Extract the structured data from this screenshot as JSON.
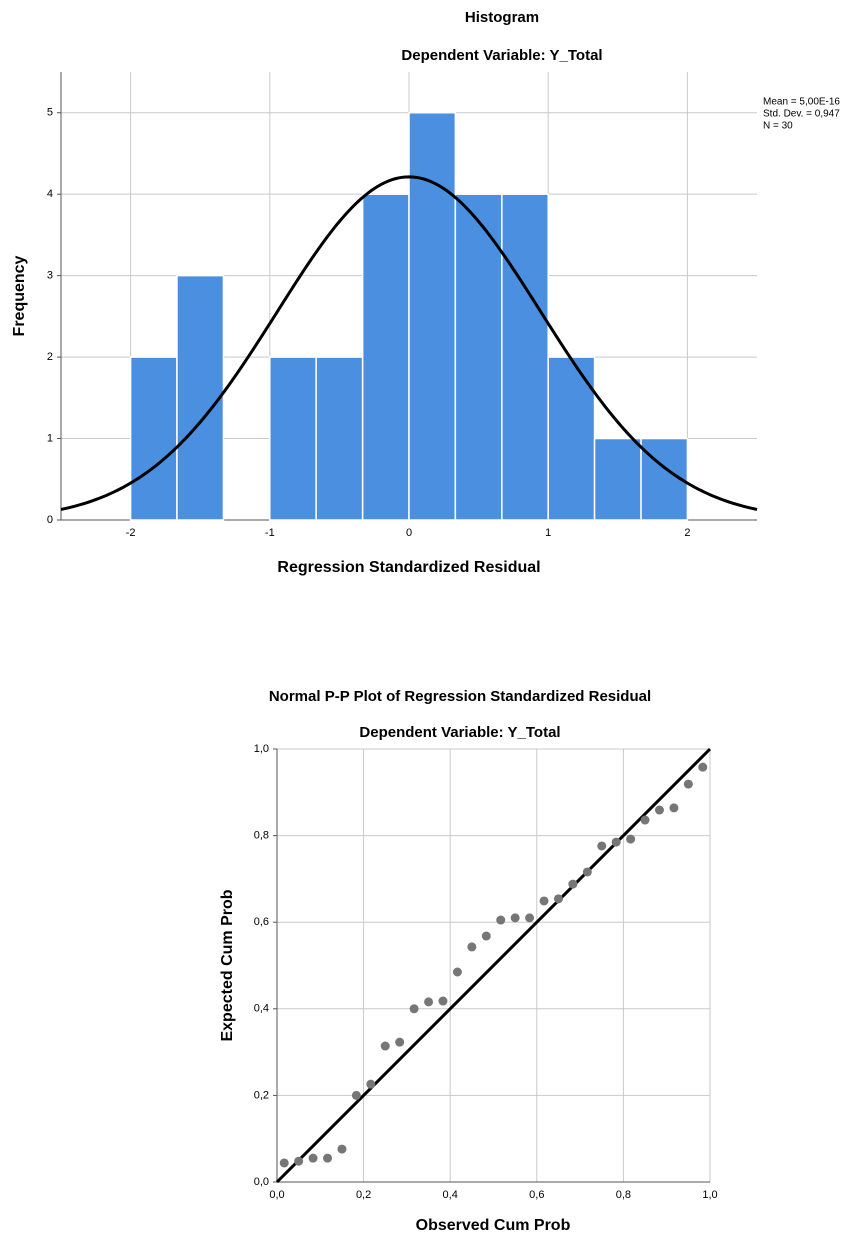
{
  "chart_data": [
    {
      "type": "histogram",
      "title": "Histogram",
      "subtitle": "Dependent Variable: Y_Total",
      "x_label": "Regression Standardized Residual",
      "y_label": "Frequency",
      "bins": [
        -2,
        -1.667,
        -1.333,
        -1,
        -0.667,
        -0.333,
        0,
        0.333,
        0.667,
        1,
        1.333,
        1.667,
        2
      ],
      "values": [
        2,
        3,
        0,
        2,
        2,
        4,
        5,
        4,
        4,
        2,
        1,
        1
      ],
      "color": "#4a8fe0",
      "xlim": [
        -2.5,
        2.5
      ],
      "xticks": [
        -2,
        -1,
        0,
        1,
        2
      ],
      "ylim": [
        0,
        5.5
      ],
      "yticks": [
        0,
        1,
        2,
        3,
        4,
        5
      ],
      "grid": true,
      "normal_curve": true,
      "stats": [
        {
          "value": 5e-16,
          "label": "Mean = 5,00E-16"
        },
        {
          "value": 0.947,
          "label": "Std. Dev. = 0,947"
        },
        {
          "value": 30,
          "label": "N = 30"
        }
      ]
    },
    {
      "type": "scatter",
      "title": "Normal P-P Plot of Regression Standardized Residual",
      "subtitle": "Dependent Variable: Y_Total",
      "x_label": "Observed Cum Prob",
      "y_label": "Expected Cum Prob",
      "x": [
        0.0167,
        0.05,
        0.0833,
        0.1167,
        0.15,
        0.1833,
        0.2167,
        0.25,
        0.2833,
        0.3167,
        0.35,
        0.3833,
        0.4167,
        0.45,
        0.4833,
        0.5167,
        0.55,
        0.5833,
        0.6167,
        0.65,
        0.6833,
        0.7167,
        0.75,
        0.7833,
        0.8167,
        0.85,
        0.8833,
        0.9167,
        0.95,
        0.9833
      ],
      "values": [
        0.044,
        0.048,
        0.055,
        0.055,
        0.076,
        0.2,
        0.226,
        0.314,
        0.323,
        0.4,
        0.416,
        0.418,
        0.485,
        0.543,
        0.568,
        0.605,
        0.61,
        0.61,
        0.649,
        0.654,
        0.688,
        0.716,
        0.776,
        0.785,
        0.792,
        0.836,
        0.859,
        0.864,
        0.919,
        0.958
      ],
      "color": "#767676",
      "xlim": [
        0,
        1
      ],
      "xticks": [
        {
          "value": 0,
          "label": "0,0"
        },
        {
          "value": 0.2,
          "label": "0,2"
        },
        {
          "value": 0.4,
          "label": "0,4"
        },
        {
          "value": 0.6,
          "label": "0,6"
        },
        {
          "value": 0.8,
          "label": "0,8"
        },
        {
          "value": 1,
          "label": "1,0"
        }
      ],
      "ylim": [
        0,
        1
      ],
      "yticks": [
        {
          "value": 0,
          "label": "0,0"
        },
        {
          "value": 0.2,
          "label": "0,2"
        },
        {
          "value": 0.4,
          "label": "0,4"
        },
        {
          "value": 0.6,
          "label": "0,6"
        },
        {
          "value": 0.8,
          "label": "0,8"
        },
        {
          "value": 1,
          "label": "1,0"
        }
      ],
      "grid": true,
      "reference_line": true
    }
  ]
}
